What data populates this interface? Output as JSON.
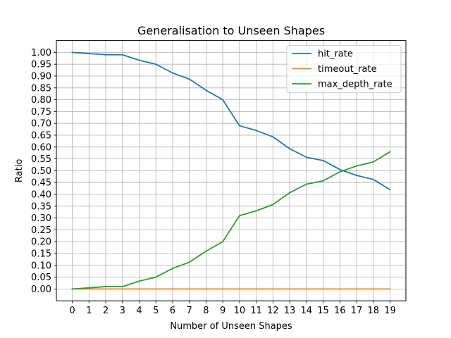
{
  "chart_data": {
    "type": "line",
    "title": "Generalisation to Unseen Shapes",
    "xlabel": "Number of Unseen Shapes",
    "ylabel": "Ratio",
    "x": [
      0,
      1,
      2,
      3,
      4,
      5,
      6,
      7,
      8,
      9,
      10,
      11,
      12,
      13,
      14,
      15,
      16,
      17,
      18,
      19
    ],
    "xlim": [
      -0.95,
      19.95
    ],
    "ylim": [
      -0.05,
      1.05
    ],
    "yticks": [
      0.0,
      0.05,
      0.1,
      0.15,
      0.2,
      0.25,
      0.3,
      0.35,
      0.4,
      0.45,
      0.5,
      0.55,
      0.6,
      0.65,
      0.7,
      0.75,
      0.8,
      0.85,
      0.9,
      0.95,
      1.0
    ],
    "grid": true,
    "legend_position": "top-right",
    "series": [
      {
        "name": "hit_rate",
        "color": "#1f77b4",
        "values": [
          1.0,
          0.995,
          0.99,
          0.99,
          0.967,
          0.95,
          0.913,
          0.887,
          0.84,
          0.8,
          0.69,
          0.67,
          0.643,
          0.593,
          0.557,
          0.543,
          0.505,
          0.48,
          0.463,
          0.42
        ]
      },
      {
        "name": "timeout_rate",
        "color": "#ff7f0e",
        "values": [
          0,
          0,
          0,
          0,
          0,
          0,
          0,
          0,
          0,
          0,
          0,
          0,
          0,
          0,
          0,
          0,
          0,
          0,
          0,
          0
        ]
      },
      {
        "name": "max_depth_rate",
        "color": "#2ca02c",
        "values": [
          0.0,
          0.005,
          0.01,
          0.01,
          0.033,
          0.05,
          0.087,
          0.113,
          0.16,
          0.2,
          0.31,
          0.33,
          0.357,
          0.407,
          0.443,
          0.457,
          0.495,
          0.52,
          0.537,
          0.58
        ]
      }
    ]
  }
}
